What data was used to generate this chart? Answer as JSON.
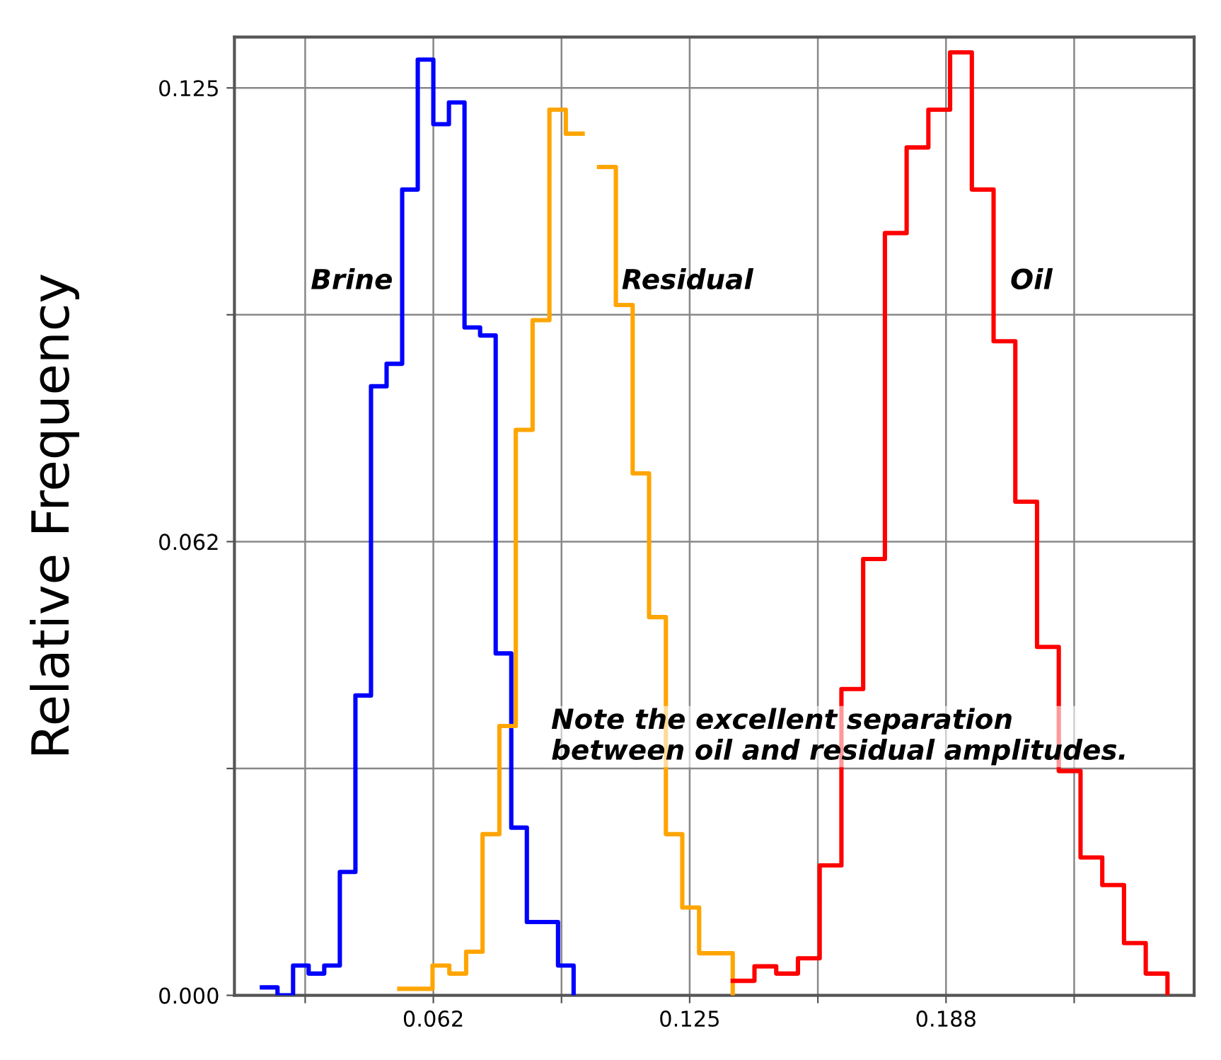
{
  "chart_data": {
    "type": "step",
    "ylabel": "Relative Frequency",
    "xlim": [
      0.014,
      0.248
    ],
    "ylim": [
      0,
      0.132
    ],
    "xticks": [
      {
        "value": 0.03125,
        "label": null
      },
      {
        "value": 0.0625,
        "label": "0.062"
      },
      {
        "value": 0.09375,
        "label": null
      },
      {
        "value": 0.125,
        "label": "0.125"
      },
      {
        "value": 0.15625,
        "label": null
      },
      {
        "value": 0.1875,
        "label": "0.188"
      },
      {
        "value": 0.21875,
        "label": null
      }
    ],
    "yticks": [
      {
        "value": 0,
        "label": "0.000"
      },
      {
        "value": 0.03125,
        "label": null
      },
      {
        "value": 0.0625,
        "label": "0.062"
      },
      {
        "value": 0.09375,
        "label": null
      },
      {
        "value": 0.125,
        "label": "0.125"
      }
    ],
    "grid": true,
    "annotations": [
      "Note the excellent separation\nbetween oil and residual amplitudes."
    ],
    "series": [
      {
        "name": "Brine",
        "color": "#0000ff",
        "x": [
          0.0207,
          0.0245,
          0.0283,
          0.0321,
          0.0359,
          0.0397,
          0.0435,
          0.0473,
          0.0511,
          0.0549,
          0.0587,
          0.0625,
          0.0663,
          0.0701,
          0.0739,
          0.0777,
          0.0815,
          0.0853,
          0.0891,
          0.0929,
          0.0967
        ],
        "values": [
          0.0011,
          0,
          0.0041,
          0.003,
          0.0041,
          0.017,
          0.0413,
          0.0839,
          0.087,
          0.111,
          0.1289,
          0.12,
          0.123,
          0.092,
          0.0909,
          0.0471,
          0.0231,
          0.0101,
          0.0101,
          0.0041,
          0
        ]
      },
      {
        "name": "Residual",
        "color": "#ffa500",
        "x": [
          0.0542,
          0.0583,
          0.0623,
          0.0664,
          0.0705,
          0.0745,
          0.0786,
          0.0826,
          0.0867,
          0.0908,
          0.0948,
          0.0989,
          0.1029,
          0.107,
          0.1111,
          0.1151,
          0.1192,
          0.1232,
          0.1273,
          0.1314,
          0.1355
        ],
        "values": [
          0.0009,
          0.0009,
          0.0041,
          0.003,
          0.006,
          0.0222,
          0.0371,
          0.0779,
          0.093,
          0.122,
          0.1187,
          null,
          0.1141,
          0.0951,
          0.0719,
          0.0521,
          0.0222,
          0.0121,
          0.0058,
          0.0058,
          0
        ]
      },
      {
        "name": "Oil",
        "color": "#ff0000",
        "x": [
          0.1355,
          0.1408,
          0.1461,
          0.1514,
          0.1567,
          0.162,
          0.1673,
          0.1726,
          0.1779,
          0.1832,
          0.1885,
          0.1938,
          0.1991,
          0.2044,
          0.2097,
          0.215,
          0.2203,
          0.2256,
          0.2309,
          0.2362,
          0.2415
        ],
        "values": [
          0.002,
          0.004,
          0.003,
          0.0051,
          0.0179,
          0.0422,
          0.0601,
          0.105,
          0.1168,
          0.122,
          0.1299,
          0.111,
          0.0901,
          0.068,
          0.048,
          0.0309,
          0.019,
          0.0152,
          0.0072,
          0.003,
          0
        ]
      }
    ]
  }
}
